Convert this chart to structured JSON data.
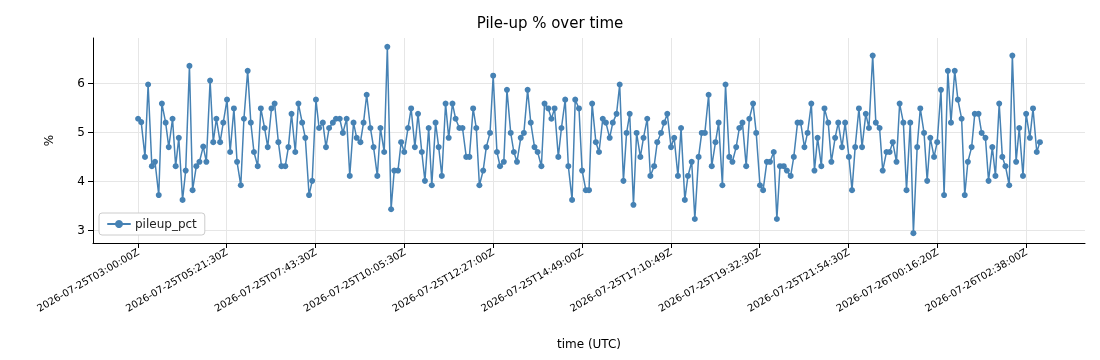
{
  "chart_data": {
    "type": "line",
    "title": "Pile-up % over time",
    "xlabel": "time (UTC)",
    "ylabel": "%",
    "x": [
      "2026-07-25T03:00",
      "2026-07-25T03:05",
      "2026-07-25T03:11",
      "2026-07-25T03:16",
      "2026-07-25T03:22",
      "2026-07-25T03:27",
      "2026-07-25T03:33",
      "2026-07-25T03:38",
      "2026-07-25T03:44",
      "2026-07-25T03:49",
      "2026-07-25T03:55",
      "2026-07-25T04:00",
      "2026-07-25T04:05",
      "2026-07-25T04:11",
      "2026-07-25T04:16",
      "2026-07-25T04:22",
      "2026-07-25T04:27",
      "2026-07-25T04:33",
      "2026-07-25T04:38",
      "2026-07-25T04:44",
      "2026-07-25T04:49",
      "2026-07-25T04:55",
      "2026-07-25T05:00",
      "2026-07-25T05:05",
      "2026-07-25T05:11",
      "2026-07-25T05:16",
      "2026-07-25T05:22",
      "2026-07-25T05:27",
      "2026-07-25T05:33",
      "2026-07-25T05:38",
      "2026-07-25T05:44",
      "2026-07-25T05:49",
      "2026-07-25T05:55",
      "2026-07-25T06:00",
      "2026-07-25T06:05",
      "2026-07-25T06:11",
      "2026-07-25T06:16",
      "2026-07-25T06:22",
      "2026-07-25T06:27",
      "2026-07-25T06:33",
      "2026-07-25T06:38",
      "2026-07-25T06:44",
      "2026-07-25T06:49",
      "2026-07-25T06:55",
      "2026-07-25T07:00",
      "2026-07-25T07:05",
      "2026-07-25T07:11",
      "2026-07-25T07:16",
      "2026-07-25T07:22",
      "2026-07-25T07:27",
      "2026-07-25T07:33",
      "2026-07-25T07:38",
      "2026-07-25T07:44",
      "2026-07-25T07:49",
      "2026-07-25T07:55",
      "2026-07-25T08:00",
      "2026-07-25T08:05",
      "2026-07-25T08:11",
      "2026-07-25T08:16",
      "2026-07-25T08:22",
      "2026-07-25T08:27",
      "2026-07-25T08:33",
      "2026-07-25T08:38",
      "2026-07-25T08:44",
      "2026-07-25T08:49",
      "2026-07-25T08:55",
      "2026-07-25T09:00",
      "2026-07-25T09:05",
      "2026-07-25T09:11",
      "2026-07-25T09:16",
      "2026-07-25T09:22",
      "2026-07-25T09:27",
      "2026-07-25T09:33",
      "2026-07-25T09:38",
      "2026-07-25T09:44",
      "2026-07-25T09:49",
      "2026-07-25T09:55",
      "2026-07-25T10:00",
      "2026-07-25T10:05",
      "2026-07-25T10:11",
      "2026-07-25T10:16",
      "2026-07-25T10:22",
      "2026-07-25T10:27",
      "2026-07-25T10:33",
      "2026-07-25T10:38",
      "2026-07-25T10:44",
      "2026-07-25T10:49",
      "2026-07-25T10:55",
      "2026-07-25T11:00",
      "2026-07-25T11:05",
      "2026-07-25T11:11",
      "2026-07-25T11:16",
      "2026-07-25T11:22",
      "2026-07-25T11:27",
      "2026-07-25T11:33",
      "2026-07-25T11:38",
      "2026-07-25T11:44",
      "2026-07-25T11:49",
      "2026-07-25T11:55",
      "2026-07-25T12:00",
      "2026-07-25T12:05",
      "2026-07-25T12:11",
      "2026-07-25T12:16",
      "2026-07-25T12:22",
      "2026-07-25T12:27",
      "2026-07-25T12:33",
      "2026-07-25T12:38",
      "2026-07-25T12:44",
      "2026-07-25T12:49",
      "2026-07-25T12:55",
      "2026-07-25T13:00",
      "2026-07-25T13:05",
      "2026-07-25T13:11",
      "2026-07-25T13:16",
      "2026-07-25T13:22",
      "2026-07-25T13:27",
      "2026-07-25T13:33",
      "2026-07-25T13:38",
      "2026-07-25T13:44",
      "2026-07-25T13:49",
      "2026-07-25T13:55",
      "2026-07-25T14:00",
      "2026-07-25T14:05",
      "2026-07-25T14:11",
      "2026-07-25T14:16",
      "2026-07-25T14:22",
      "2026-07-25T14:27",
      "2026-07-25T14:33",
      "2026-07-25T14:38",
      "2026-07-25T14:44",
      "2026-07-25T14:49",
      "2026-07-25T14:55",
      "2026-07-25T15:00",
      "2026-07-25T15:05",
      "2026-07-25T15:11",
      "2026-07-25T15:16",
      "2026-07-25T15:22",
      "2026-07-25T15:27",
      "2026-07-25T15:33",
      "2026-07-25T15:38",
      "2026-07-25T15:44",
      "2026-07-25T15:49",
      "2026-07-25T15:55",
      "2026-07-25T16:00",
      "2026-07-25T16:05",
      "2026-07-25T16:11",
      "2026-07-25T16:16",
      "2026-07-25T16:22",
      "2026-07-25T16:27",
      "2026-07-25T16:33",
      "2026-07-25T16:38",
      "2026-07-25T16:44",
      "2026-07-25T16:49",
      "2026-07-25T16:55",
      "2026-07-25T17:00",
      "2026-07-25T17:05",
      "2026-07-25T17:11",
      "2026-07-25T17:16",
      "2026-07-25T17:22",
      "2026-07-25T17:27",
      "2026-07-25T17:33",
      "2026-07-25T17:38",
      "2026-07-25T17:44",
      "2026-07-25T17:49",
      "2026-07-25T17:55",
      "2026-07-25T18:00",
      "2026-07-25T18:05",
      "2026-07-25T18:11",
      "2026-07-25T18:16",
      "2026-07-25T18:22",
      "2026-07-25T18:27",
      "2026-07-25T18:33",
      "2026-07-25T18:38",
      "2026-07-25T18:44",
      "2026-07-25T18:49",
      "2026-07-25T18:55",
      "2026-07-25T19:00",
      "2026-07-25T19:05",
      "2026-07-25T19:11",
      "2026-07-25T19:16",
      "2026-07-25T19:22",
      "2026-07-25T19:27",
      "2026-07-25T19:33",
      "2026-07-25T19:38",
      "2026-07-25T19:44",
      "2026-07-25T19:49",
      "2026-07-25T19:55",
      "2026-07-25T20:00",
      "2026-07-25T20:05",
      "2026-07-25T20:11",
      "2026-07-25T20:16",
      "2026-07-25T20:22",
      "2026-07-25T20:27",
      "2026-07-25T20:33",
      "2026-07-25T20:38",
      "2026-07-25T20:44",
      "2026-07-25T20:49",
      "2026-07-25T20:55",
      "2026-07-25T21:00",
      "2026-07-25T21:05",
      "2026-07-25T21:11",
      "2026-07-25T21:16",
      "2026-07-25T21:22",
      "2026-07-25T21:27",
      "2026-07-25T21:33",
      "2026-07-25T21:38",
      "2026-07-25T21:44",
      "2026-07-25T21:49",
      "2026-07-25T21:55",
      "2026-07-25T22:00",
      "2026-07-25T22:05",
      "2026-07-25T22:11",
      "2026-07-25T22:16",
      "2026-07-25T22:22",
      "2026-07-25T22:27",
      "2026-07-25T22:33",
      "2026-07-25T22:38",
      "2026-07-25T22:44",
      "2026-07-25T22:49",
      "2026-07-25T22:55",
      "2026-07-25T23:00",
      "2026-07-25T23:05",
      "2026-07-25T23:11",
      "2026-07-25T23:16",
      "2026-07-25T23:22",
      "2026-07-25T23:27",
      "2026-07-25T23:33",
      "2026-07-25T23:38",
      "2026-07-25T23:44",
      "2026-07-25T23:49",
      "2026-07-25T23:55",
      "2026-07-26T00:00",
      "2026-07-26T00:05",
      "2026-07-26T00:11",
      "2026-07-26T00:16",
      "2026-07-26T00:22",
      "2026-07-26T00:27",
      "2026-07-26T00:33",
      "2026-07-26T00:38",
      "2026-07-26T00:44",
      "2026-07-26T00:49",
      "2026-07-26T00:55",
      "2026-07-26T01:00",
      "2026-07-26T01:05",
      "2026-07-26T01:11",
      "2026-07-26T01:16",
      "2026-07-26T01:22",
      "2026-07-26T01:27",
      "2026-07-26T01:33",
      "2026-07-26T01:38",
      "2026-07-26T01:44",
      "2026-07-26T01:49",
      "2026-07-26T01:55",
      "2026-07-26T02:00",
      "2026-07-26T02:05",
      "2026-07-26T02:11",
      "2026-07-26T02:16",
      "2026-07-26T02:22",
      "2026-07-26T02:27",
      "2026-07-26T02:33",
      "2026-07-26T02:38",
      "2026-07-26T02:44",
      "2026-07-26T02:49",
      "2026-07-26T02:55",
      "2026-07-26T03:00"
    ],
    "series": [
      {
        "name": "pileup_pct",
        "color": "#4682b4",
        "values": [
          5.27,
          5.2,
          4.49,
          5.97,
          4.3,
          4.39,
          3.71,
          5.58,
          5.19,
          4.69,
          5.27,
          4.3,
          4.88,
          3.61,
          4.21,
          6.35,
          3.81,
          4.3,
          4.39,
          4.7,
          4.39,
          6.05,
          4.79,
          5.27,
          4.79,
          5.19,
          5.66,
          4.59,
          5.48,
          4.39,
          3.91,
          5.27,
          6.25,
          5.19,
          4.59,
          4.3,
          5.48,
          5.08,
          4.69,
          5.48,
          5.58,
          4.79,
          4.3,
          4.3,
          4.69,
          5.37,
          4.59,
          5.58,
          5.19,
          4.88,
          3.71,
          4.0,
          5.66,
          5.08,
          5.19,
          4.69,
          5.08,
          5.19,
          5.27,
          5.27,
          4.98,
          5.27,
          4.1,
          5.19,
          4.88,
          4.79,
          5.19,
          5.76,
          5.08,
          4.69,
          4.1,
          5.08,
          4.59,
          6.74,
          3.42,
          4.21,
          4.21,
          4.79,
          4.59,
          5.08,
          5.48,
          4.69,
          5.37,
          4.59,
          4.0,
          5.08,
          3.91,
          5.19,
          4.69,
          4.1,
          5.58,
          4.88,
          5.58,
          5.27,
          5.08,
          5.08,
          4.49,
          4.49,
          5.48,
          5.08,
          3.91,
          4.21,
          4.69,
          4.98,
          6.15,
          4.59,
          4.3,
          4.39,
          5.86,
          4.98,
          4.59,
          4.39,
          4.88,
          4.98,
          5.86,
          5.19,
          4.69,
          4.59,
          4.3,
          5.58,
          5.48,
          5.27,
          5.48,
          4.49,
          5.08,
          5.66,
          4.3,
          3.61,
          5.66,
          5.48,
          4.21,
          3.81,
          3.81,
          5.58,
          4.79,
          4.59,
          5.27,
          5.19,
          4.88,
          5.19,
          5.37,
          5.97,
          4.0,
          4.98,
          5.37,
          3.51,
          4.98,
          4.49,
          4.88,
          5.27,
          4.1,
          4.3,
          4.79,
          4.98,
          5.19,
          5.37,
          4.69,
          4.88,
          4.1,
          5.08,
          3.61,
          4.1,
          4.39,
          3.22,
          4.49,
          4.98,
          4.98,
          5.76,
          4.3,
          4.79,
          5.19,
          3.91,
          5.97,
          4.49,
          4.39,
          4.69,
          5.08,
          5.19,
          4.3,
          5.27,
          5.58,
          4.98,
          3.91,
          3.81,
          4.39,
          4.39,
          4.59,
          3.22,
          4.3,
          4.3,
          4.21,
          4.1,
          4.49,
          5.19,
          5.19,
          4.69,
          4.98,
          5.58,
          4.21,
          4.88,
          4.3,
          5.48,
          5.19,
          4.39,
          4.88,
          5.19,
          4.69,
          5.19,
          4.49,
          3.81,
          4.69,
          5.48,
          4.69,
          5.37,
          5.08,
          6.56,
          5.19,
          5.08,
          4.21,
          4.59,
          4.59,
          4.79,
          4.39,
          5.58,
          5.19,
          3.81,
          5.19,
          2.93,
          4.69,
          5.48,
          4.98,
          4.0,
          4.88,
          4.49,
          4.79,
          5.86,
          3.71,
          6.25,
          5.19,
          6.25,
          5.66,
          5.27,
          3.71,
          4.39,
          4.69,
          5.37,
          5.37,
          4.98,
          4.88,
          4.0,
          4.69,
          4.1,
          5.58,
          4.49,
          4.3,
          3.91,
          6.56,
          4.39,
          5.08,
          4.1,
          5.37,
          4.88,
          5.48,
          4.59,
          4.79
        ]
      }
    ],
    "xlim": [
      "2026-07-25T01:48",
      "2026-07-26T04:12"
    ],
    "xticks": [
      "2026-07-25T03:00:00Z",
      "2026-07-25T05:21:30Z",
      "2026-07-25T07:43:30Z",
      "2026-07-25T10:05:30Z",
      "2026-07-25T12:27:00Z",
      "2026-07-25T14:49:00Z",
      "2026-07-25T17:10:49Z",
      "2026-07-25T19:32:30Z",
      "2026-07-25T21:54:30Z",
      "2026-07-26T00:16:20Z",
      "2026-07-26T02:38:00Z"
    ],
    "ylim": [
      2.73,
      6.92
    ],
    "yticks": [
      3,
      4,
      5,
      6
    ],
    "grid": true,
    "legend": "bottom left",
    "marker": "circle",
    "line_style": "solid"
  }
}
